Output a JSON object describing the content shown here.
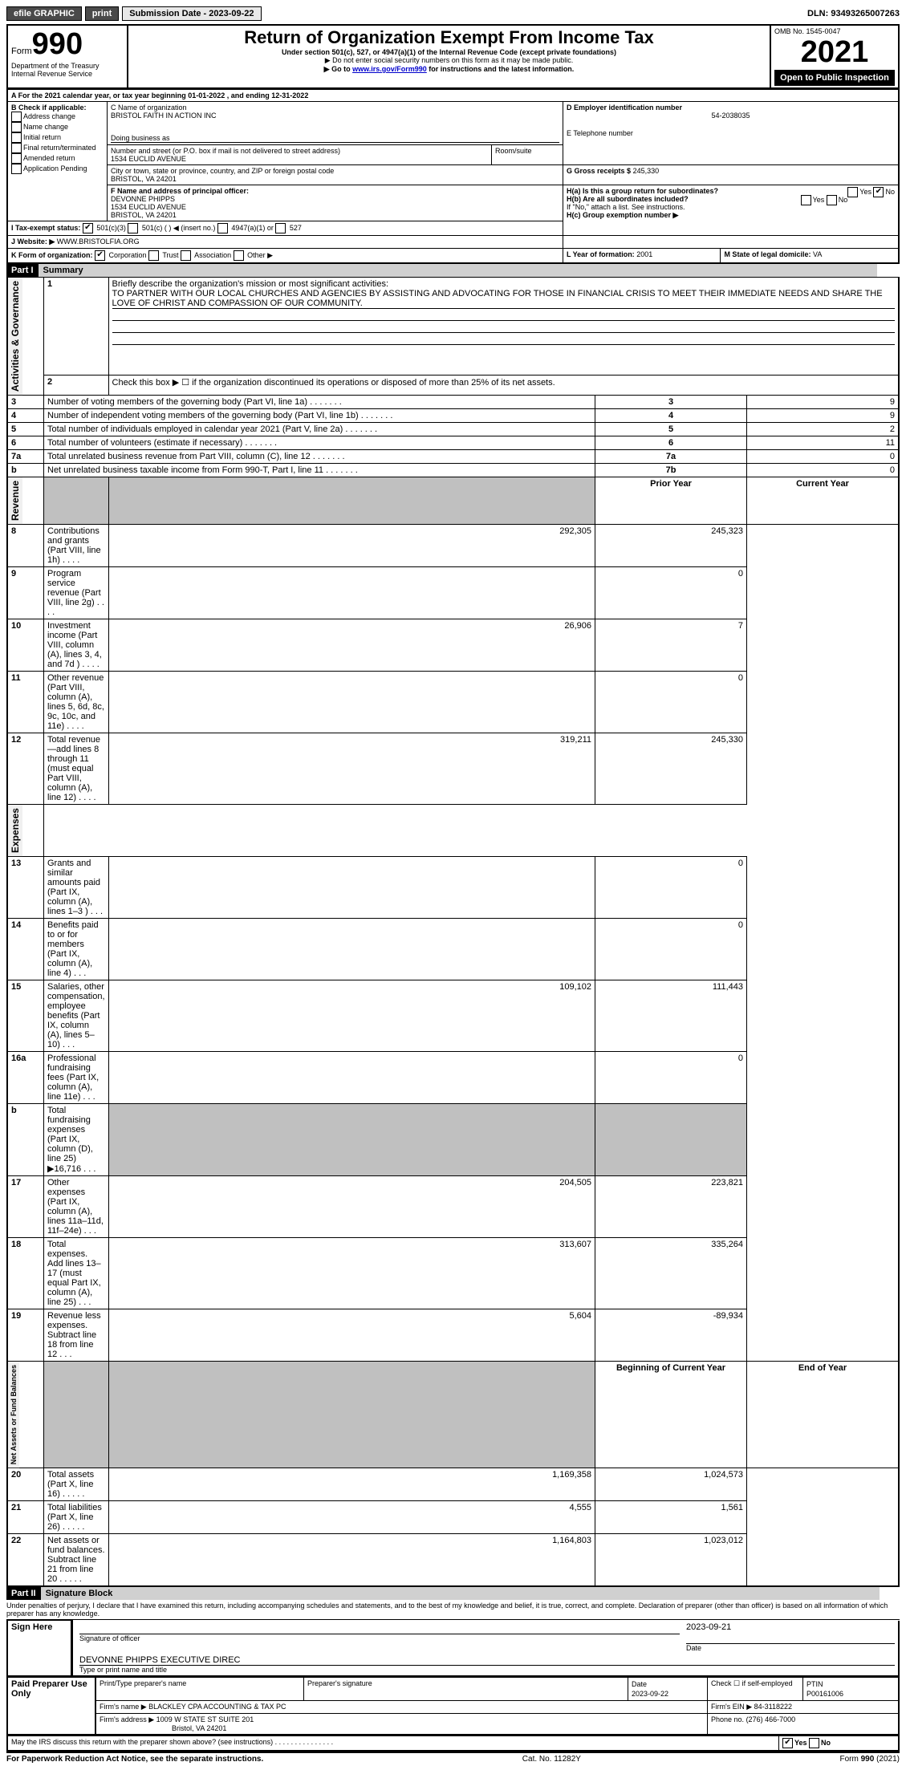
{
  "topbar": {
    "efile": "efile GRAPHIC",
    "print": "print",
    "submission_label": "Submission Date - 2023-09-22",
    "dln": "DLN: 93493265007263"
  },
  "header": {
    "form_label": "Form",
    "form_number": "990",
    "title": "Return of Organization Exempt From Income Tax",
    "subtitle1": "Under section 501(c), 527, or 4947(a)(1) of the Internal Revenue Code (except private foundations)",
    "subtitle2": "▶ Do not enter social security numbers on this form as it may be made public.",
    "subtitle3_pre": "▶ Go to ",
    "subtitle3_link": "www.irs.gov/Form990",
    "subtitle3_post": " for instructions and the latest information.",
    "dept": "Department of the Treasury",
    "irs": "Internal Revenue Service",
    "omb": "OMB No. 1545-0047",
    "year": "2021",
    "open": "Open to Public Inspection"
  },
  "sectionA": {
    "period": "A For the 2021 calendar year, or tax year beginning 01-01-2022   , and ending 12-31-2022",
    "b_label": "B Check if applicable:",
    "b_opts": [
      "Address change",
      "Name change",
      "Initial return",
      "Final return/terminated",
      "Amended return",
      "Application Pending"
    ],
    "c_label": "C Name of organization",
    "c_value": "BRISTOL FAITH IN ACTION INC",
    "dba_label": "Doing business as",
    "addr_label": "Number and street (or P.O. box if mail is not delivered to street address)",
    "addr_value": "1534 EUCLID AVENUE",
    "room_label": "Room/suite",
    "city_label": "City or town, state or province, country, and ZIP or foreign postal code",
    "city_value": "BRISTOL, VA  24201",
    "d_label": "D Employer identification number",
    "d_value": "54-2038035",
    "e_label": "E Telephone number",
    "g_label": "G Gross receipts $",
    "g_value": "245,330",
    "f_label": "F  Name and address of principal officer:",
    "f_value1": "DEVONNE PHIPPS",
    "f_value2": "1534 EUCLID AVENUE",
    "f_value3": "BRISTOL, VA  24201",
    "ha_label": "H(a)  Is this a group return for subordinates?",
    "hb_label": "H(b)  Are all subordinates included?",
    "hb_note": "If \"No,\" attach a list. See instructions.",
    "hc_label": "H(c)  Group exemption number ▶",
    "yes": "Yes",
    "no": "No",
    "i_label": "I   Tax-exempt status:",
    "i_opts": [
      "501(c)(3)",
      "501(c) (  ) ◀ (insert no.)",
      "4947(a)(1) or",
      "527"
    ],
    "j_label": "J   Website: ▶",
    "j_value": "WWW.BRISTOLFIA.ORG",
    "k_label": "K Form of organization:",
    "k_opts": [
      "Corporation",
      "Trust",
      "Association",
      "Other ▶"
    ],
    "l_label": "L Year of formation:",
    "l_value": "2001",
    "m_label": "M State of legal domicile:",
    "m_value": "VA"
  },
  "part1": {
    "header": "Part I",
    "title": "Summary",
    "sec_activities": "Activities & Governance",
    "sec_revenue": "Revenue",
    "sec_expenses": "Expenses",
    "sec_net": "Net Assets or Fund Balances",
    "line1_label": "Briefly describe the organization's mission or most significant activities:",
    "line1_text": "TO PARTNER WITH OUR LOCAL CHURCHES AND AGENCIES BY ASSISTING AND ADVOCATING FOR THOSE IN FINANCIAL CRISIS TO MEET THEIR IMMEDIATE NEEDS AND SHARE THE LOVE OF CHRIST AND COMPASSION OF OUR COMMUNITY.",
    "line2": "Check this box ▶ ☐  if the organization discontinued its operations or disposed of more than 25% of its net assets.",
    "rows_gov": [
      {
        "n": "3",
        "label": "Number of voting members of the governing body (Part VI, line 1a)",
        "box": "3",
        "val": "9"
      },
      {
        "n": "4",
        "label": "Number of independent voting members of the governing body (Part VI, line 1b)",
        "box": "4",
        "val": "9"
      },
      {
        "n": "5",
        "label": "Total number of individuals employed in calendar year 2021 (Part V, line 2a)",
        "box": "5",
        "val": "2"
      },
      {
        "n": "6",
        "label": "Total number of volunteers (estimate if necessary)",
        "box": "6",
        "val": "11"
      },
      {
        "n": "7a",
        "label": "Total unrelated business revenue from Part VIII, column (C), line 12",
        "box": "7a",
        "val": "0"
      },
      {
        "n": "b",
        "label": "Net unrelated business taxable income from Form 990-T, Part I, line 11",
        "box": "7b",
        "val": "0"
      }
    ],
    "col_prior": "Prior Year",
    "col_current": "Current Year",
    "rows_rev": [
      {
        "n": "8",
        "label": "Contributions and grants (Part VIII, line 1h)",
        "py": "292,305",
        "cy": "245,323"
      },
      {
        "n": "9",
        "label": "Program service revenue (Part VIII, line 2g)",
        "py": "",
        "cy": "0"
      },
      {
        "n": "10",
        "label": "Investment income (Part VIII, column (A), lines 3, 4, and 7d )",
        "py": "26,906",
        "cy": "7"
      },
      {
        "n": "11",
        "label": "Other revenue (Part VIII, column (A), lines 5, 6d, 8c, 9c, 10c, and 11e)",
        "py": "",
        "cy": "0"
      },
      {
        "n": "12",
        "label": "Total revenue—add lines 8 through 11 (must equal Part VIII, column (A), line 12)",
        "py": "319,211",
        "cy": "245,330"
      }
    ],
    "rows_exp": [
      {
        "n": "13",
        "label": "Grants and similar amounts paid (Part IX, column (A), lines 1–3 )",
        "py": "",
        "cy": "0"
      },
      {
        "n": "14",
        "label": "Benefits paid to or for members (Part IX, column (A), line 4)",
        "py": "",
        "cy": "0"
      },
      {
        "n": "15",
        "label": "Salaries, other compensation, employee benefits (Part IX, column (A), lines 5–10)",
        "py": "109,102",
        "cy": "111,443"
      },
      {
        "n": "16a",
        "label": "Professional fundraising fees (Part IX, column (A), line 11e)",
        "py": "",
        "cy": "0"
      },
      {
        "n": "b",
        "label": "Total fundraising expenses (Part IX, column (D), line 25) ▶16,716",
        "py": "GRAY",
        "cy": "GRAY"
      },
      {
        "n": "17",
        "label": "Other expenses (Part IX, column (A), lines 11a–11d, 11f–24e)",
        "py": "204,505",
        "cy": "223,821"
      },
      {
        "n": "18",
        "label": "Total expenses. Add lines 13–17 (must equal Part IX, column (A), line 25)",
        "py": "313,607",
        "cy": "335,264"
      },
      {
        "n": "19",
        "label": "Revenue less expenses. Subtract line 18 from line 12",
        "py": "5,604",
        "cy": "-89,934"
      }
    ],
    "col_begin": "Beginning of Current Year",
    "col_end": "End of Year",
    "rows_net": [
      {
        "n": "20",
        "label": "Total assets (Part X, line 16)",
        "py": "1,169,358",
        "cy": "1,024,573"
      },
      {
        "n": "21",
        "label": "Total liabilities (Part X, line 26)",
        "py": "4,555",
        "cy": "1,561"
      },
      {
        "n": "22",
        "label": "Net assets or fund balances. Subtract line 21 from line 20",
        "py": "1,164,803",
        "cy": "1,023,012"
      }
    ]
  },
  "part2": {
    "header": "Part II",
    "title": "Signature Block",
    "declaration": "Under penalties of perjury, I declare that I have examined this return, including accompanying schedules and statements, and to the best of my knowledge and belief, it is true, correct, and complete. Declaration of preparer (other than officer) is based on all information of which preparer has any knowledge.",
    "sign_here": "Sign Here",
    "sig_officer": "Signature of officer",
    "sig_date": "2023-09-21",
    "date_label": "Date",
    "officer_name": "DEVONNE PHIPPS  EXECUTIVE DIREC",
    "type_name_label": "Type or print name and title",
    "paid_prep": "Paid Preparer Use Only",
    "prep_name_label": "Print/Type preparer's name",
    "prep_sig_label": "Preparer's signature",
    "prep_date_label": "Date",
    "prep_date": "2023-09-22",
    "check_self": "Check ☐ if self-employed",
    "ptin_label": "PTIN",
    "ptin": "P00161006",
    "firm_name_label": "Firm's name    ▶",
    "firm_name": "BLACKLEY CPA ACCOUNTING & TAX PC",
    "firm_ein_label": "Firm's EIN ▶",
    "firm_ein": "84-3118222",
    "firm_addr_label": "Firm's address ▶",
    "firm_addr1": "1009 W STATE ST SUITE 201",
    "firm_addr2": "Bristol, VA  24201",
    "phone_label": "Phone no.",
    "phone": "(276) 466-7000",
    "discuss": "May the IRS discuss this return with the preparer shown above? (see instructions)"
  },
  "footer": {
    "left": "For Paperwork Reduction Act Notice, see the separate instructions.",
    "mid": "Cat. No. 11282Y",
    "right": "Form 990 (2021)"
  }
}
